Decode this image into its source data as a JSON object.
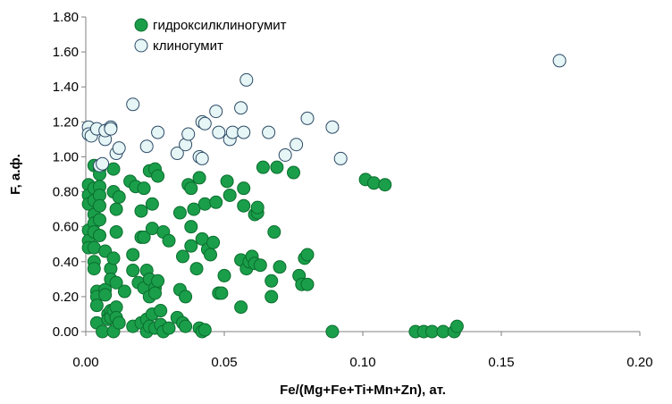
{
  "chart_data": {
    "type": "scatter",
    "xlabel": "Fe/(Mg+Fe+Ti+Mn+Zn), ат.",
    "ylabel": "F, а.ф.",
    "xlim": [
      0,
      0.2
    ],
    "ylim": [
      0,
      1.8
    ],
    "x_ticks": [
      "0.00",
      "0.05",
      "0.10",
      "0.15",
      "0.20"
    ],
    "y_ticks": [
      "0.00",
      "0.20",
      "0.40",
      "0.60",
      "0.80",
      "1.00",
      "1.20",
      "1.40",
      "1.60",
      "1.80"
    ],
    "grid": false,
    "legend_position": "top-left",
    "series": [
      {
        "name": "гидроксилклиногумит",
        "fill": "#1a9e4a",
        "stroke": "#0b6e2e",
        "points": [
          [
            0.001,
            0.84
          ],
          [
            0.001,
            0.78
          ],
          [
            0.001,
            0.73
          ],
          [
            0.001,
            0.58
          ],
          [
            0.001,
            0.52
          ],
          [
            0.001,
            0.48
          ],
          [
            0.003,
            0.95
          ],
          [
            0.003,
            0.82
          ],
          [
            0.003,
            0.75
          ],
          [
            0.003,
            0.67
          ],
          [
            0.003,
            0.62
          ],
          [
            0.003,
            0.57
          ],
          [
            0.003,
            0.48
          ],
          [
            0.003,
            0.4
          ],
          [
            0.003,
            0.36
          ],
          [
            0.004,
            0.23
          ],
          [
            0.004,
            0.2
          ],
          [
            0.004,
            0.15
          ],
          [
            0.004,
            0.05
          ],
          [
            0.005,
            0.93
          ],
          [
            0.005,
            0.9
          ],
          [
            0.005,
            0.83
          ],
          [
            0.005,
            0.78
          ],
          [
            0.005,
            0.72
          ],
          [
            0.005,
            0.64
          ],
          [
            0.005,
            0.55
          ],
          [
            0.006,
            0.0
          ],
          [
            0.007,
            0.46
          ],
          [
            0.007,
            0.24
          ],
          [
            0.007,
            0.21
          ],
          [
            0.008,
            0.1
          ],
          [
            0.008,
            0.07
          ],
          [
            0.009,
            0.36
          ],
          [
            0.009,
            0.3
          ],
          [
            0.009,
            0.12
          ],
          [
            0.009,
            0.08
          ],
          [
            0.01,
            0.93
          ],
          [
            0.01,
            0.8
          ],
          [
            0.01,
            0.42
          ],
          [
            0.01,
            0.12
          ],
          [
            0.01,
            0.0
          ],
          [
            0.011,
            0.7
          ],
          [
            0.011,
            0.57
          ],
          [
            0.011,
            0.28
          ],
          [
            0.011,
            0.14
          ],
          [
            0.011,
            0.08
          ],
          [
            0.012,
            0.05
          ],
          [
            0.012,
            0.77
          ],
          [
            0.014,
            0.23
          ],
          [
            0.016,
            0.86
          ],
          [
            0.017,
            0.35
          ],
          [
            0.017,
            0.03
          ],
          [
            0.017,
            0.44
          ],
          [
            0.018,
            0.83
          ],
          [
            0.019,
            0.28
          ],
          [
            0.02,
            0.54
          ],
          [
            0.02,
            0.05
          ],
          [
            0.02,
            0.69
          ],
          [
            0.021,
            0.25
          ],
          [
            0.021,
            0.54
          ],
          [
            0.021,
            0.82
          ],
          [
            0.022,
            0.35
          ],
          [
            0.022,
            0.07
          ],
          [
            0.022,
            0.0
          ],
          [
            0.023,
            0.92
          ],
          [
            0.023,
            0.3
          ],
          [
            0.023,
            0.2
          ],
          [
            0.023,
            0.03
          ],
          [
            0.024,
            0.73
          ],
          [
            0.024,
            0.59
          ],
          [
            0.024,
            0.1
          ],
          [
            0.025,
            0.93
          ],
          [
            0.025,
            0.25
          ],
          [
            0.025,
            0.22
          ],
          [
            0.025,
            0.02
          ],
          [
            0.026,
            0.89
          ],
          [
            0.026,
            0.29
          ],
          [
            0.027,
            0.12
          ],
          [
            0.027,
            0.04
          ],
          [
            0.028,
            0.57
          ],
          [
            0.028,
            0.0
          ],
          [
            0.03,
            0.52
          ],
          [
            0.03,
            0.02
          ],
          [
            0.033,
            0.08
          ],
          [
            0.034,
            0.68
          ],
          [
            0.034,
            0.24
          ],
          [
            0.035,
            0.43
          ],
          [
            0.035,
            0.05
          ],
          [
            0.036,
            0.2
          ],
          [
            0.036,
            0.03
          ],
          [
            0.037,
            0.84
          ],
          [
            0.038,
            0.49
          ],
          [
            0.038,
            0.6
          ],
          [
            0.038,
            0.82
          ],
          [
            0.039,
            0.7
          ],
          [
            0.04,
            0.36
          ],
          [
            0.041,
            0.88
          ],
          [
            0.041,
            0.02
          ],
          [
            0.042,
            0.53
          ],
          [
            0.042,
            0.0
          ],
          [
            0.043,
            0.01
          ],
          [
            0.043,
            0.73
          ],
          [
            0.044,
            0.47
          ],
          [
            0.045,
            0.44
          ],
          [
            0.046,
            0.51
          ],
          [
            0.047,
            0.74
          ],
          [
            0.048,
            0.22
          ],
          [
            0.049,
            0.22
          ],
          [
            0.05,
            0.32
          ],
          [
            0.051,
            0.86
          ],
          [
            0.052,
            0.78
          ],
          [
            0.056,
            0.41
          ],
          [
            0.056,
            0.14
          ],
          [
            0.057,
            0.82
          ],
          [
            0.057,
            0.72
          ],
          [
            0.058,
            0.36
          ],
          [
            0.059,
            0.4
          ],
          [
            0.06,
            0.43
          ],
          [
            0.061,
            0.39
          ],
          [
            0.061,
            0.67
          ],
          [
            0.062,
            0.68
          ],
          [
            0.062,
            0.71
          ],
          [
            0.063,
            0.38
          ],
          [
            0.064,
            0.94
          ],
          [
            0.067,
            0.2
          ],
          [
            0.067,
            0.29
          ],
          [
            0.068,
            0.57
          ],
          [
            0.069,
            0.94
          ],
          [
            0.07,
            0.37
          ],
          [
            0.075,
            0.91
          ],
          [
            0.077,
            0.32
          ],
          [
            0.078,
            0.27
          ],
          [
            0.079,
            0.42
          ],
          [
            0.08,
            0.44
          ],
          [
            0.08,
            0.27
          ],
          [
            0.089,
            0.0
          ],
          [
            0.101,
            0.87
          ],
          [
            0.104,
            0.85
          ],
          [
            0.108,
            0.84
          ],
          [
            0.119,
            0.0
          ],
          [
            0.122,
            0.0
          ],
          [
            0.125,
            0.0
          ],
          [
            0.129,
            0.0
          ],
          [
            0.133,
            0.0
          ],
          [
            0.134,
            0.03
          ]
        ]
      },
      {
        "name": "клиногумит",
        "fill": "#e6f5f5",
        "stroke": "#2b4a66",
        "points": [
          [
            0.001,
            1.17
          ],
          [
            0.001,
            1.13
          ],
          [
            0.002,
            1.12
          ],
          [
            0.004,
            1.16
          ],
          [
            0.005,
            0.95
          ],
          [
            0.006,
            0.96
          ],
          [
            0.007,
            1.1
          ],
          [
            0.007,
            1.15
          ],
          [
            0.009,
            1.17
          ],
          [
            0.009,
            1.16
          ],
          [
            0.011,
            1.02
          ],
          [
            0.012,
            1.05
          ],
          [
            0.017,
            1.3
          ],
          [
            0.022,
            1.06
          ],
          [
            0.026,
            1.14
          ],
          [
            0.033,
            1.02
          ],
          [
            0.036,
            1.07
          ],
          [
            0.037,
            1.13
          ],
          [
            0.041,
            1.0
          ],
          [
            0.042,
            0.99
          ],
          [
            0.042,
            1.2
          ],
          [
            0.043,
            1.19
          ],
          [
            0.047,
            1.26
          ],
          [
            0.048,
            1.14
          ],
          [
            0.052,
            1.1
          ],
          [
            0.053,
            1.14
          ],
          [
            0.056,
            1.28
          ],
          [
            0.057,
            1.14
          ],
          [
            0.058,
            1.44
          ],
          [
            0.066,
            1.14
          ],
          [
            0.072,
            1.01
          ],
          [
            0.076,
            1.07
          ],
          [
            0.08,
            1.22
          ],
          [
            0.089,
            1.17
          ],
          [
            0.092,
            0.99
          ],
          [
            0.171,
            1.55
          ]
        ]
      }
    ]
  }
}
